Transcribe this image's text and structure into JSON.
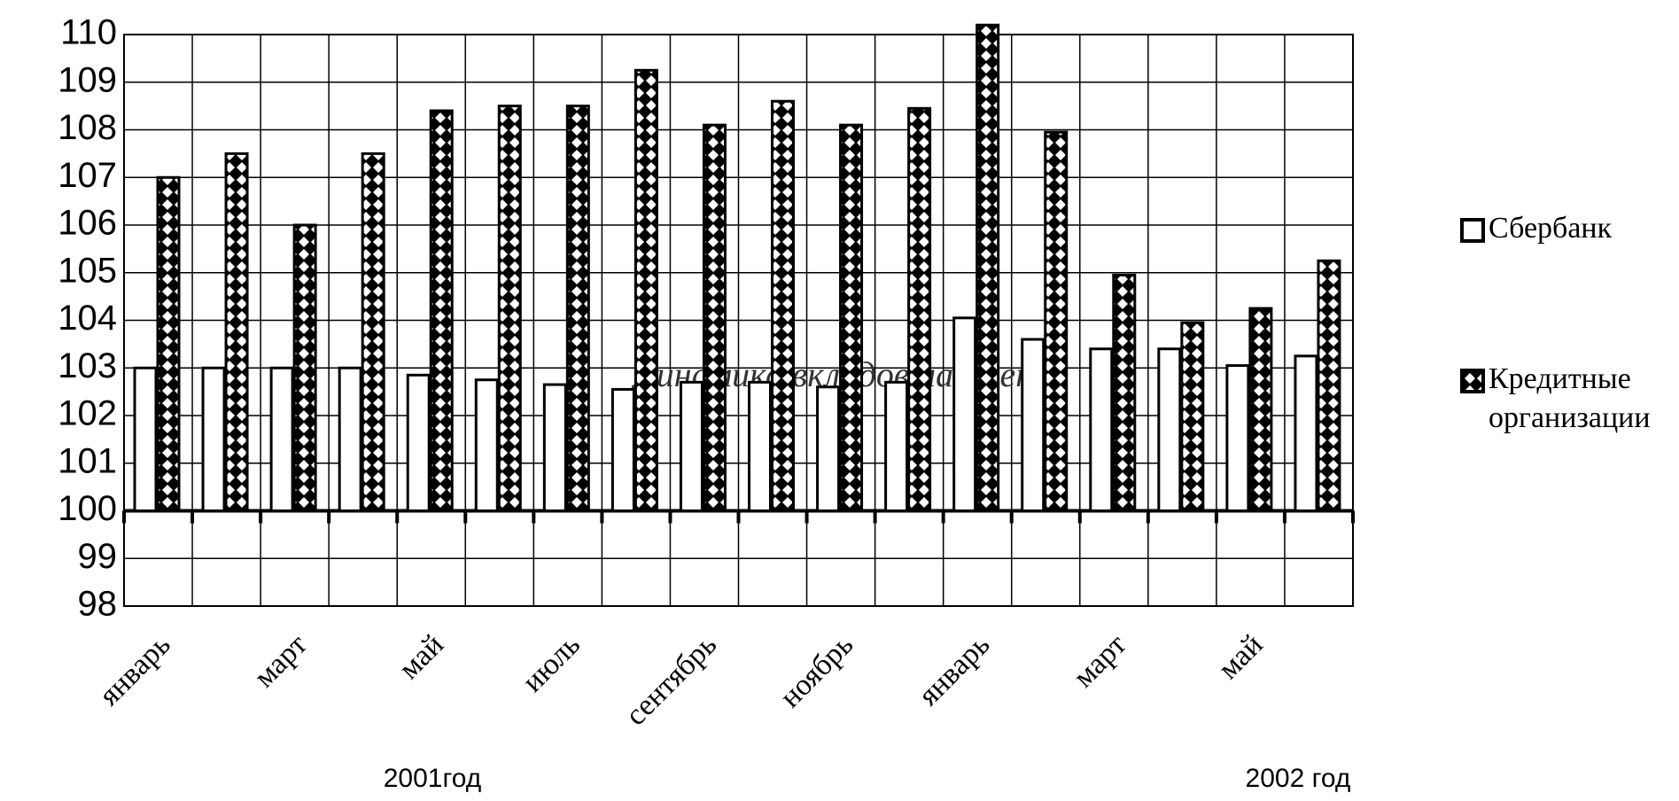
{
  "chart_data": {
    "type": "bar",
    "title": "Динамика вкладов населения",
    "categories": [
      "январь",
      null,
      "март",
      null,
      "май",
      null,
      "июль",
      null,
      "сентябрь",
      null,
      "ноябрь",
      null,
      "январь",
      null,
      "март",
      null,
      "май",
      null
    ],
    "series": [
      {
        "name": "Сбербанк",
        "color": "#ffffff",
        "values": [
          103,
          103,
          103,
          103,
          102.85,
          102.75,
          102.65,
          102.55,
          102.7,
          102.7,
          102.6,
          102.7,
          104.05,
          103.6,
          103.4,
          103.4,
          103.05,
          103.25
        ]
      },
      {
        "name": "Кредитные организации",
        "color": "#000000",
        "values": [
          107,
          107.5,
          106,
          107.5,
          108.4,
          108.5,
          108.5,
          109.25,
          108.1,
          108.6,
          108.1,
          108.45,
          110.2,
          107.95,
          104.95,
          103.95,
          104.25,
          105.25
        ]
      }
    ],
    "ylim": [
      98,
      110
    ],
    "yticks": [
      98,
      99,
      100,
      101,
      102,
      103,
      104,
      105,
      106,
      107,
      108,
      109,
      110
    ],
    "baseline": 100,
    "grid": true,
    "legend": "right",
    "annotations": [
      "2001год",
      "2002 год"
    ]
  }
}
